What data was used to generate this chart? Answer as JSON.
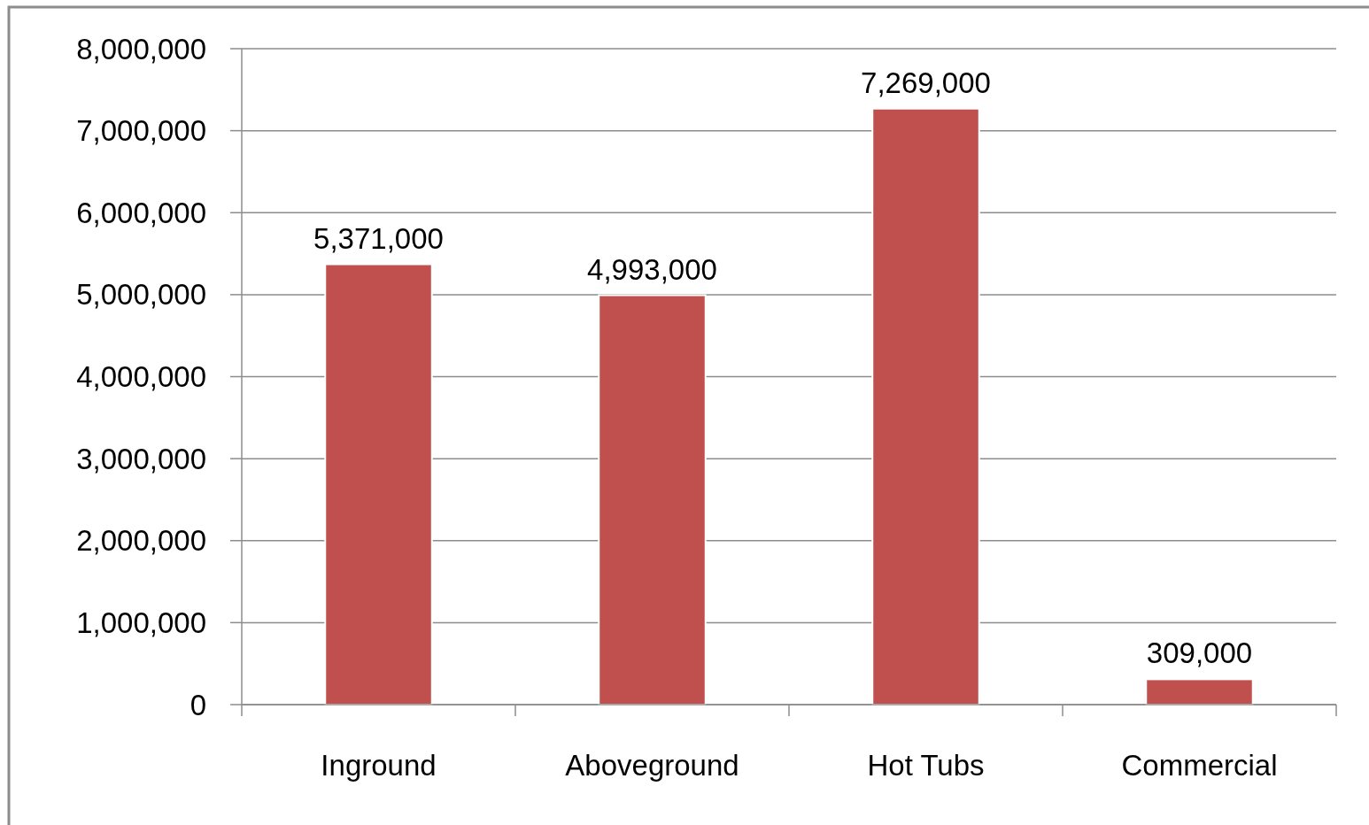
{
  "chart_data": {
    "type": "bar",
    "categories": [
      "Inground",
      "Aboveground",
      "Hot Tubs",
      "Commercial"
    ],
    "values": [
      5371000,
      4993000,
      7269000,
      309000
    ],
    "color": "#c0504d",
    "ylim": [
      0,
      8000000
    ],
    "yticks": [
      {
        "value": 0,
        "label": "0"
      },
      {
        "value": 1000000,
        "label": "1,000,000"
      },
      {
        "value": 2000000,
        "label": "2,000,000"
      },
      {
        "value": 3000000,
        "label": "3,000,000"
      },
      {
        "value": 4000000,
        "label": "4,000,000"
      },
      {
        "value": 5000000,
        "label": "5,000,000"
      },
      {
        "value": 6000000,
        "label": "6,000,000"
      },
      {
        "value": 7000000,
        "label": "7,000,000"
      },
      {
        "value": 8000000,
        "label": "8,000,000"
      }
    ],
    "grid": "y",
    "value_labels": [
      "5,371,000",
      "4,993,000",
      "7,269,000",
      "309,000"
    ]
  }
}
